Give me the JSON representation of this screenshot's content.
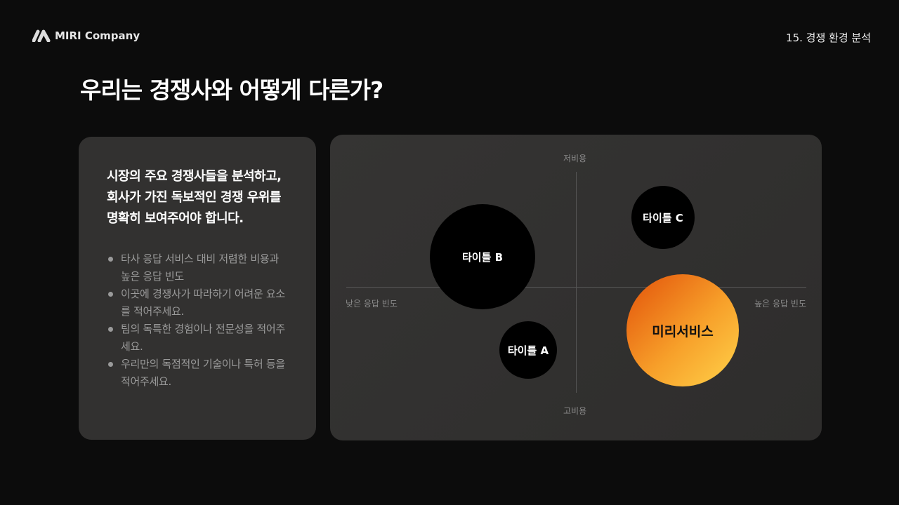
{
  "header": {
    "brand": "MIRI Company",
    "section": "15. 경쟁 환경 분석"
  },
  "title": "우리는 경쟁사와 어떻게 다른가?",
  "left_panel": {
    "lead": "시장의 주요 경쟁사들을 분석하고, 회사가 가진 독보적인 경쟁 우위를 명확히 보여주어야 합니다.",
    "bullets": [
      "타사 응답 서비스 대비 저렴한 비용과 높은 응답 빈도",
      "이곳에 경쟁사가 따라하기 어려운 요소를 적어주세요.",
      "팀의 독특한 경험이나 전문성을 적어주세요.",
      "우리만의 독점적인 기술이나 특허 등을 적어주세요."
    ]
  },
  "map": {
    "axis_top": "저비용",
    "axis_bottom": "고비용",
    "axis_left": "낮은 응답 빈도",
    "axis_right": "높은 응답 빈도",
    "bubbles": [
      {
        "label": "타이틀 B",
        "color": "#000000"
      },
      {
        "label": "타이틀 C",
        "color": "#000000"
      },
      {
        "label": "타이틀 A",
        "color": "#000000"
      },
      {
        "label": "미리서비스",
        "color": "#f28a1e"
      }
    ]
  }
}
